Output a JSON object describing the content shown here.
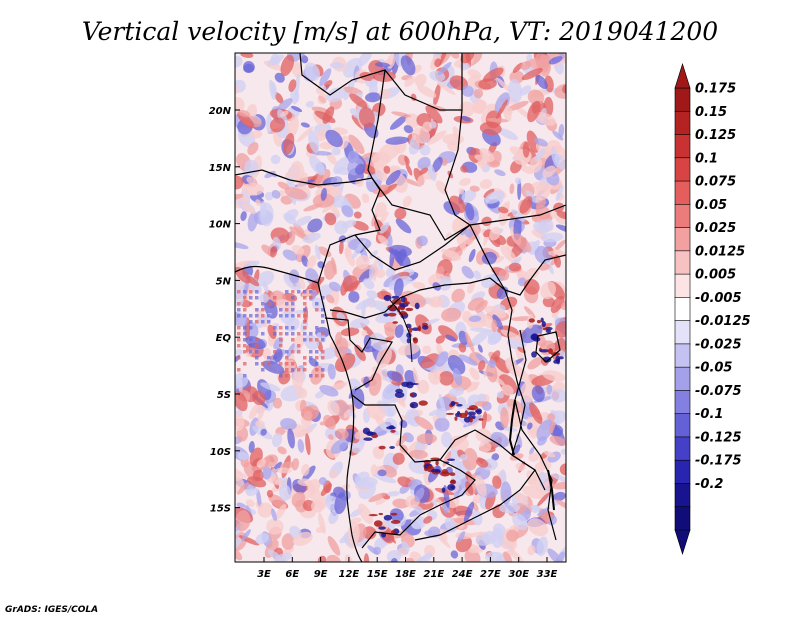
{
  "title": "Vertical velocity [m/s] at 600hPa, VT: 2019041200",
  "credit": "GrADS: IGES/COLA",
  "lat_labels": [
    "20N",
    "15N",
    "10N",
    "5N",
    "EQ",
    "5S",
    "10S",
    "15S"
  ],
  "lon_labels": [
    "3E",
    "6E",
    "9E",
    "12E",
    "15E",
    "18E",
    "21E",
    "24E",
    "27E",
    "30E",
    "33E"
  ],
  "colorbar": {
    "labels": [
      "0.175",
      "0.15",
      "0.125",
      "0.1",
      "0.075",
      "0.05",
      "0.025",
      "0.0125",
      "0.005",
      "-0.005",
      "-0.0125",
      "-0.025",
      "-0.05",
      "-0.075",
      "-0.1",
      "-0.125",
      "-0.175",
      "-0.2"
    ],
    "colors": [
      "#a01818",
      "#b42222",
      "#c83232",
      "#d84444",
      "#e45e5e",
      "#ec7c7c",
      "#f2a0a0",
      "#f8c2c2",
      "#fce4e4",
      "#ffffff",
      "#e4e2f8",
      "#c4c2f2",
      "#a4a0ea",
      "#8480e2",
      "#6460d6",
      "#4440c8",
      "#2826b0",
      "#181490",
      "#100c78"
    ],
    "top_color": "#a01818",
    "bottom_color": "#100c78"
  },
  "field_colors": {
    "red_strong": "#e06060",
    "red_mid": "#f0a0a0",
    "red_light": "#f8cccc",
    "blue_light": "#d0d0f4",
    "blue_mid": "#a8a6ec",
    "blue_strong": "#6a66d8",
    "dark_red": "#a81818",
    "dark_blue": "#1a1690"
  }
}
